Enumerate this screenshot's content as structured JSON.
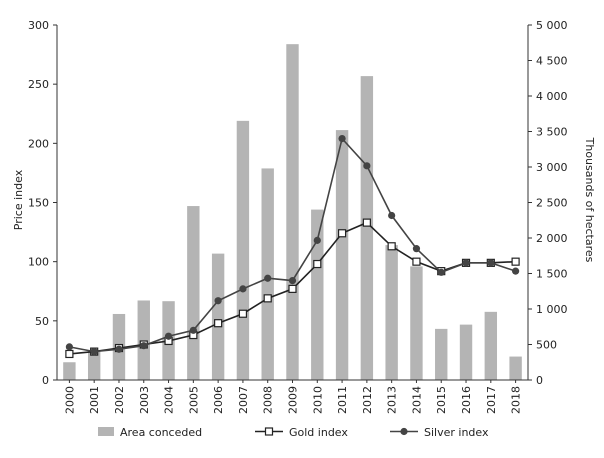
{
  "chart_data": {
    "type": "bar+line",
    "categories": [
      "2000",
      "2001",
      "2002",
      "2003",
      "2004",
      "2005",
      "2006",
      "2007",
      "2008",
      "2009",
      "2010",
      "2011",
      "2012",
      "2013",
      "2014",
      "2015",
      "2016",
      "2017",
      "2018"
    ],
    "ylabel_left": "Price index",
    "ylabel_right": "Thousands of hectares",
    "ylim_left": [
      0,
      300
    ],
    "ylim_right": [
      0,
      5000
    ],
    "yticks_left": [
      0,
      50,
      100,
      150,
      200,
      250,
      300
    ],
    "yticks_right": [
      0,
      500,
      1000,
      1500,
      2000,
      2500,
      3000,
      3500,
      4000,
      4500,
      5000
    ],
    "yticks_right_labels": [
      "0",
      "500",
      "1 000",
      "1 500",
      "2 000",
      "2 500",
      "3 000",
      "3 500",
      "4 000",
      "4 500",
      "5 000"
    ],
    "grid": false,
    "legend_position": "bottom",
    "series": [
      {
        "name": "Area conceded",
        "type": "bar",
        "axis": "right",
        "color": "#b4b4b4",
        "values": [
          250,
          420,
          930,
          1120,
          1110,
          2450,
          1780,
          3650,
          2980,
          4730,
          2400,
          3520,
          4280,
          1900,
          1600,
          720,
          780,
          960,
          330
        ]
      },
      {
        "name": "Gold index",
        "type": "line",
        "axis": "left",
        "color": "#222222",
        "marker": "square-open",
        "values": [
          22,
          24,
          27,
          30,
          33,
          38,
          48,
          56,
          69,
          77,
          98,
          124,
          133,
          113,
          100,
          92,
          99,
          99,
          100
        ]
      },
      {
        "name": "Silver index",
        "type": "line",
        "axis": "left",
        "color": "#444444",
        "marker": "circle-filled",
        "values": [
          28,
          24,
          26,
          29,
          37,
          42,
          67,
          77,
          86,
          84,
          118,
          204,
          181,
          139,
          111,
          91,
          99,
          99,
          92
        ]
      }
    ]
  }
}
